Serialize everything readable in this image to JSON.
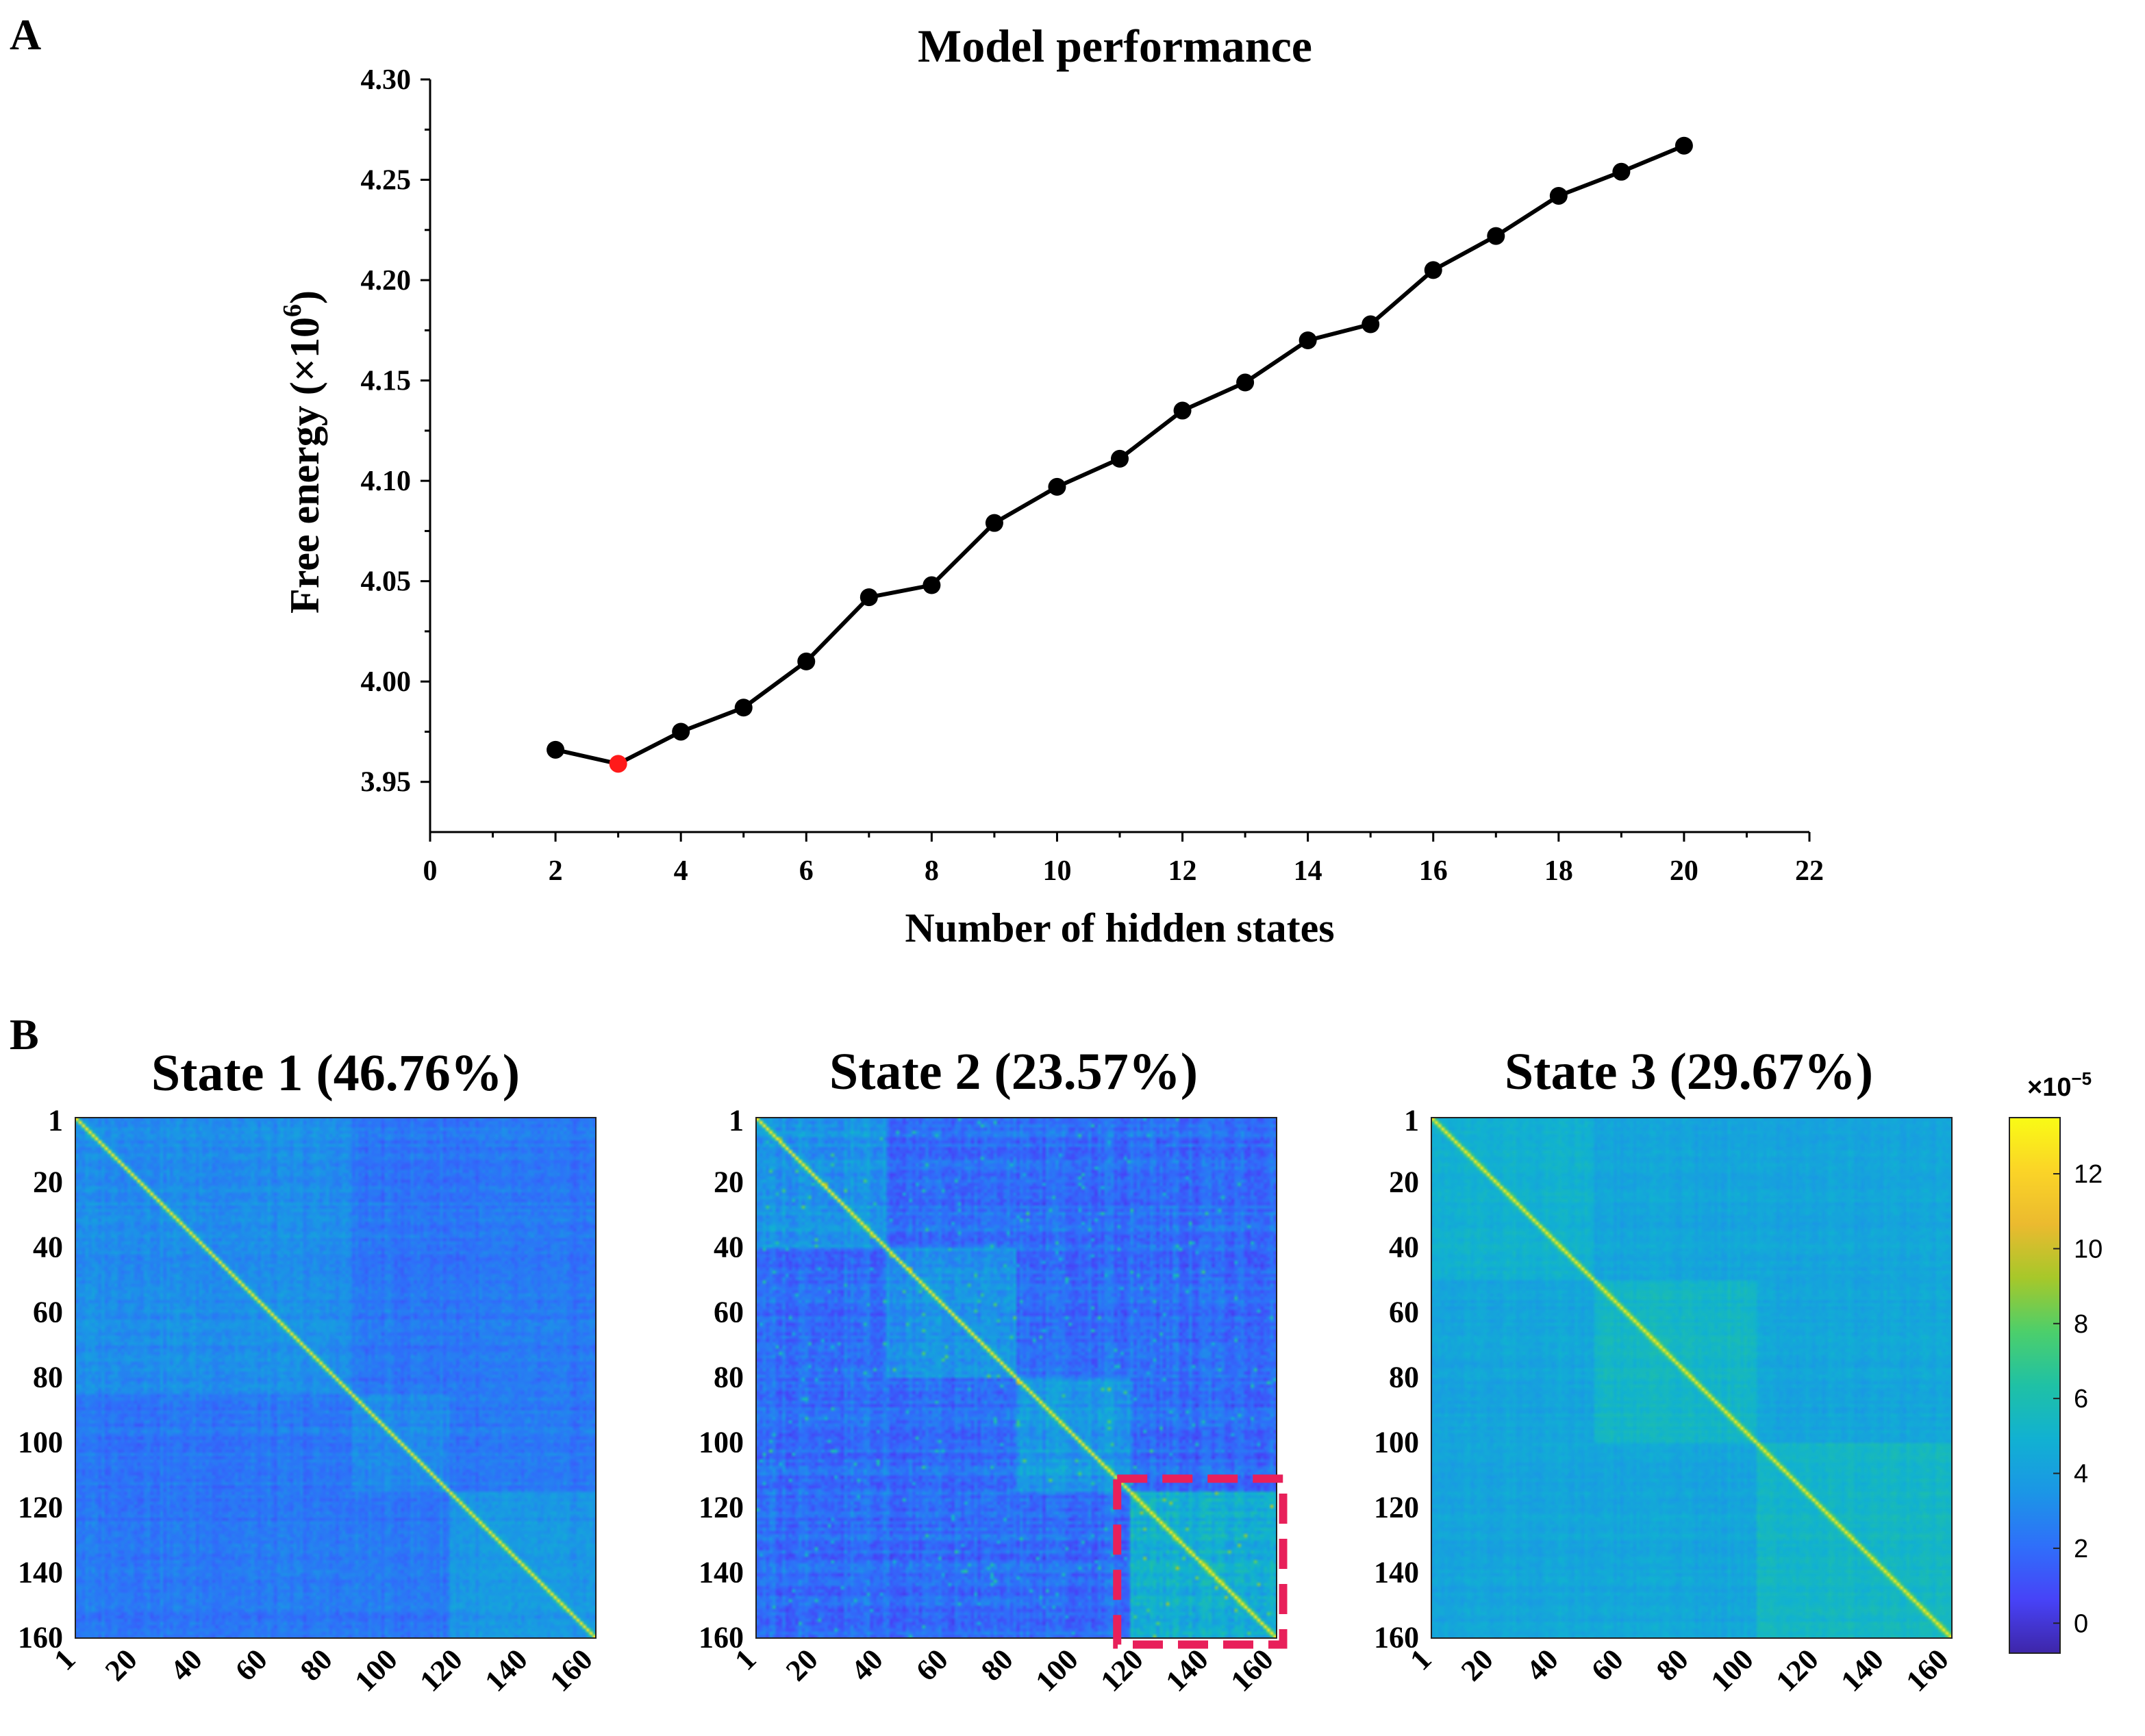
{
  "panels": {
    "a": "A",
    "b": "B"
  },
  "chart_data": [
    {
      "type": "line",
      "title": "Model performance",
      "xlabel": "Number of hidden states",
      "ylabel": "Free energy (×10",
      "ylabel_sup": "6",
      "ylabel_close": ")",
      "xlim": [
        0,
        22
      ],
      "ylim": [
        3.925,
        4.3
      ],
      "x_ticks": [
        0,
        2,
        4,
        6,
        8,
        10,
        12,
        14,
        16,
        18,
        20,
        22
      ],
      "y_ticks": [
        "3.95",
        "4.00",
        "4.05",
        "4.10",
        "4.15",
        "4.20",
        "4.25",
        "4.30"
      ],
      "x": [
        2,
        3,
        4,
        5,
        6,
        7,
        8,
        9,
        10,
        11,
        12,
        13,
        14,
        15,
        16,
        17,
        18,
        19,
        20
      ],
      "y": [
        3.966,
        3.959,
        3.975,
        3.987,
        4.01,
        4.042,
        4.048,
        4.079,
        4.097,
        4.111,
        4.135,
        4.149,
        4.17,
        4.178,
        4.205,
        4.222,
        4.242,
        4.254,
        4.267
      ],
      "highlight_x": 3,
      "colors": {
        "line": "#000000",
        "point": "#000000",
        "highlight": "#ff1a1a"
      }
    },
    {
      "type": "heatmap",
      "matrices": [
        {
          "title": "State 1 (46.76%)",
          "base": 0.22,
          "band": 0.05,
          "contrast": 1.0,
          "blocks": [
            [
              0,
              85,
              0.06
            ],
            [
              85,
              115,
              0.05
            ],
            [
              115,
              160,
              0.08
            ]
          ]
        },
        {
          "title": "State 2 (23.57%)",
          "base": 0.2,
          "band": 0.08,
          "contrast": 1.4,
          "blocks": [
            [
              0,
              40,
              0.1
            ],
            [
              40,
              80,
              0.1
            ],
            [
              80,
              115,
              0.12
            ],
            [
              115,
              160,
              0.2
            ]
          ]
        },
        {
          "title": "State 3 (29.67%)",
          "base": 0.36,
          "band": 0.04,
          "contrast": 0.6,
          "blocks": [
            [
              0,
              50,
              0.05
            ],
            [
              50,
              100,
              0.07
            ],
            [
              100,
              160,
              0.07
            ]
          ]
        }
      ],
      "size": 160,
      "y_ticks": [
        "1",
        "20",
        "40",
        "60",
        "80",
        "100",
        "120",
        "140",
        "160"
      ],
      "x_ticks": [
        "1",
        "20",
        "40",
        "60",
        "80",
        "100",
        "120",
        "140",
        "160"
      ],
      "tick_values": [
        1,
        20,
        40,
        60,
        80,
        100,
        120,
        140,
        160
      ],
      "colorbar": {
        "min": -0.8,
        "max": 13.5,
        "ticks": [
          "0",
          "2",
          "4",
          "6",
          "8",
          "10",
          "12"
        ],
        "tick_values": [
          0,
          2,
          4,
          6,
          8,
          10,
          12
        ],
        "exponent": "×10",
        "exponent_sup": "−5"
      },
      "highlight_box": {
        "matrix": 2,
        "from": 112,
        "to": 163,
        "color": "#e8205a"
      },
      "colormap": [
        "#3e26a8",
        "#4743f8",
        "#2f6ffa",
        "#1b96e6",
        "#11b1d2",
        "#1fc1a5",
        "#4ccf6b",
        "#a6c82a",
        "#ebba2f",
        "#fbd427",
        "#f9fb15"
      ]
    }
  ]
}
